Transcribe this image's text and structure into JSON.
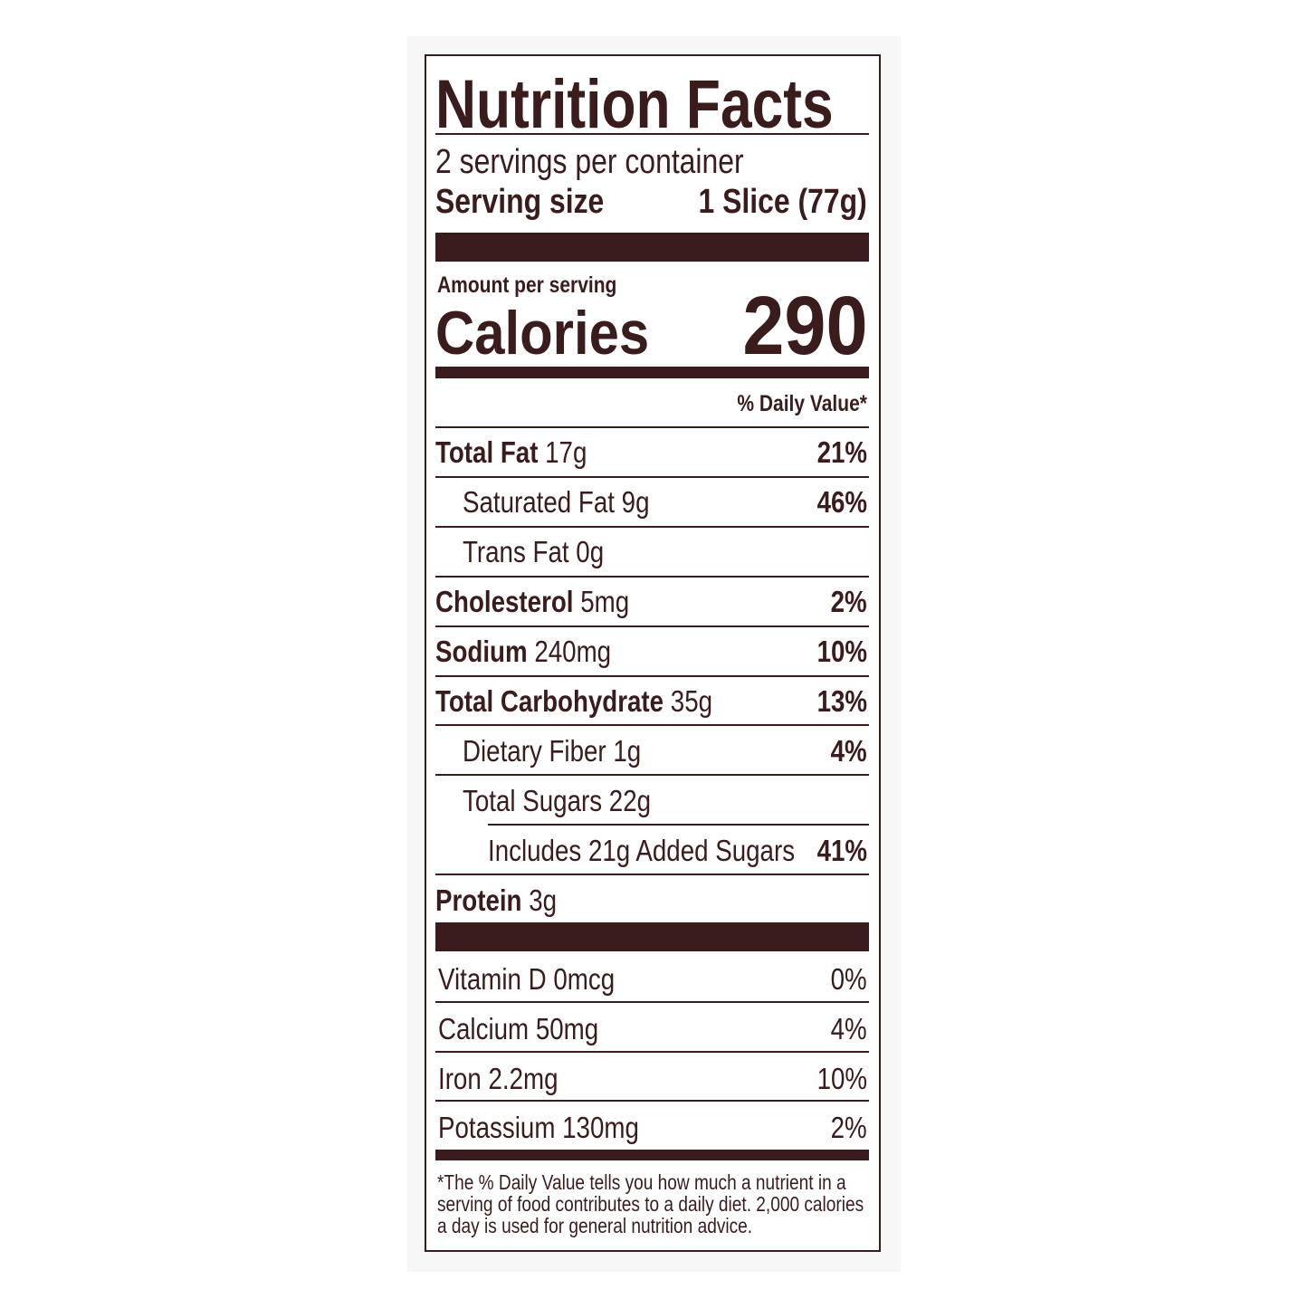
{
  "title": "Nutrition Facts",
  "servings_per_container": "2 servings per container",
  "serving_size": {
    "label": "Serving size",
    "value": "1 Slice (77g)"
  },
  "amount_per_serving": "Amount per serving",
  "calories": {
    "label": "Calories",
    "value": "290"
  },
  "daily_value_header": "% Daily Value*",
  "nutrients": [
    {
      "name": "Total Fat",
      "amount": "17g",
      "dv": "21%"
    },
    {
      "name": "Saturated Fat 9g",
      "dv": "46%"
    },
    {
      "name": "Trans Fat 0g"
    },
    {
      "name": "Cholesterol",
      "amount": "5mg",
      "dv": "2%"
    },
    {
      "name": "Sodium",
      "amount": "240mg",
      "dv": "10%"
    },
    {
      "name": "Total Carbohydrate",
      "amount": "35g",
      "dv": "13%"
    },
    {
      "name": "Dietary Fiber 1g",
      "dv": "4%"
    },
    {
      "name": "Total Sugars 22g"
    },
    {
      "name": "Includes 21g Added Sugars",
      "dv": "41%"
    },
    {
      "name": "Protein",
      "amount": "3g"
    }
  ],
  "vitamins": [
    {
      "name": "Vitamin D 0mcg",
      "dv": "0%"
    },
    {
      "name": "Calcium 50mg",
      "dv": "4%"
    },
    {
      "name": "Iron 2.2mg",
      "dv": "10%"
    },
    {
      "name": "Potassium 130mg",
      "dv": "2%"
    }
  ],
  "footnote": "*The % Daily Value tells you how much a nutrient in a serving of food contributes to a daily diet. 2,000 calories a day is used for general nutrition advice."
}
